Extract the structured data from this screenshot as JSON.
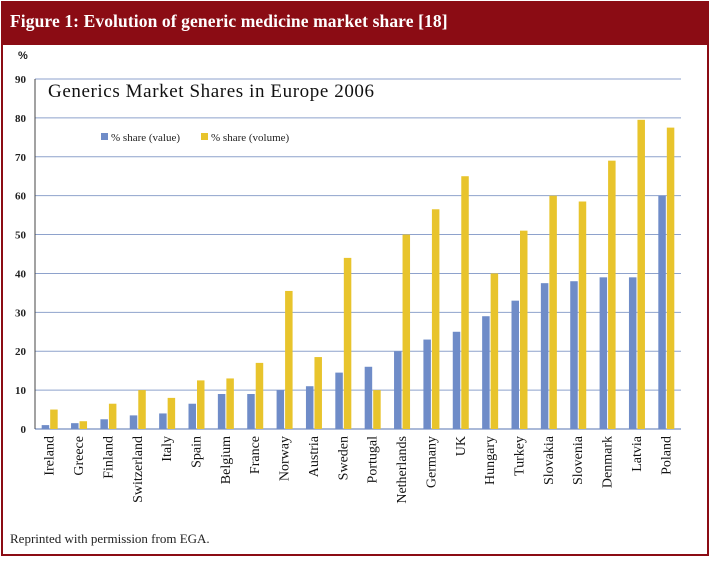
{
  "figure": {
    "title": "Figure 1: Evolution of generic medicine market share [18]",
    "footer": "Reprinted with permission from EGA."
  },
  "colors": {
    "header_bg": "#8b0c14",
    "value_series": "#6f8cc8",
    "volume_series": "#e8c42c",
    "gridline": "#8ea2cc"
  },
  "chart_data": {
    "type": "bar",
    "title": "Generics Market Shares in Europe 2006",
    "ylabel": "%",
    "xlabel": "",
    "ylim": [
      0,
      90
    ],
    "yticks": [
      0,
      10,
      20,
      30,
      40,
      50,
      60,
      70,
      80,
      90
    ],
    "grid": true,
    "legend_position": "top-left",
    "categories": [
      "Ireland",
      "Greece",
      "Finland",
      "Switzerland",
      "Italy",
      "Spain",
      "Belgium",
      "France",
      "Norway",
      "Austria",
      "Sweden",
      "Portugal",
      "Netherlands",
      "Germany",
      "UK",
      "Hungary",
      "Turkey",
      "Slovakia",
      "Slovenia",
      "Denmark",
      "Latvia",
      "Poland"
    ],
    "series": [
      {
        "name": "% share (value)",
        "values": [
          1,
          1.5,
          2.5,
          3.5,
          4,
          6.5,
          9,
          9,
          10,
          11,
          14.5,
          16,
          20,
          23,
          25,
          29,
          33,
          37.5,
          38,
          39,
          39,
          60
        ]
      },
      {
        "name": "% share (volume)",
        "values": [
          5,
          2,
          6.5,
          10,
          8,
          12.5,
          13,
          17,
          35.5,
          18.5,
          44,
          10,
          50,
          56.5,
          65,
          40,
          51,
          60,
          58.5,
          69,
          79.5,
          77.5
        ]
      }
    ]
  }
}
